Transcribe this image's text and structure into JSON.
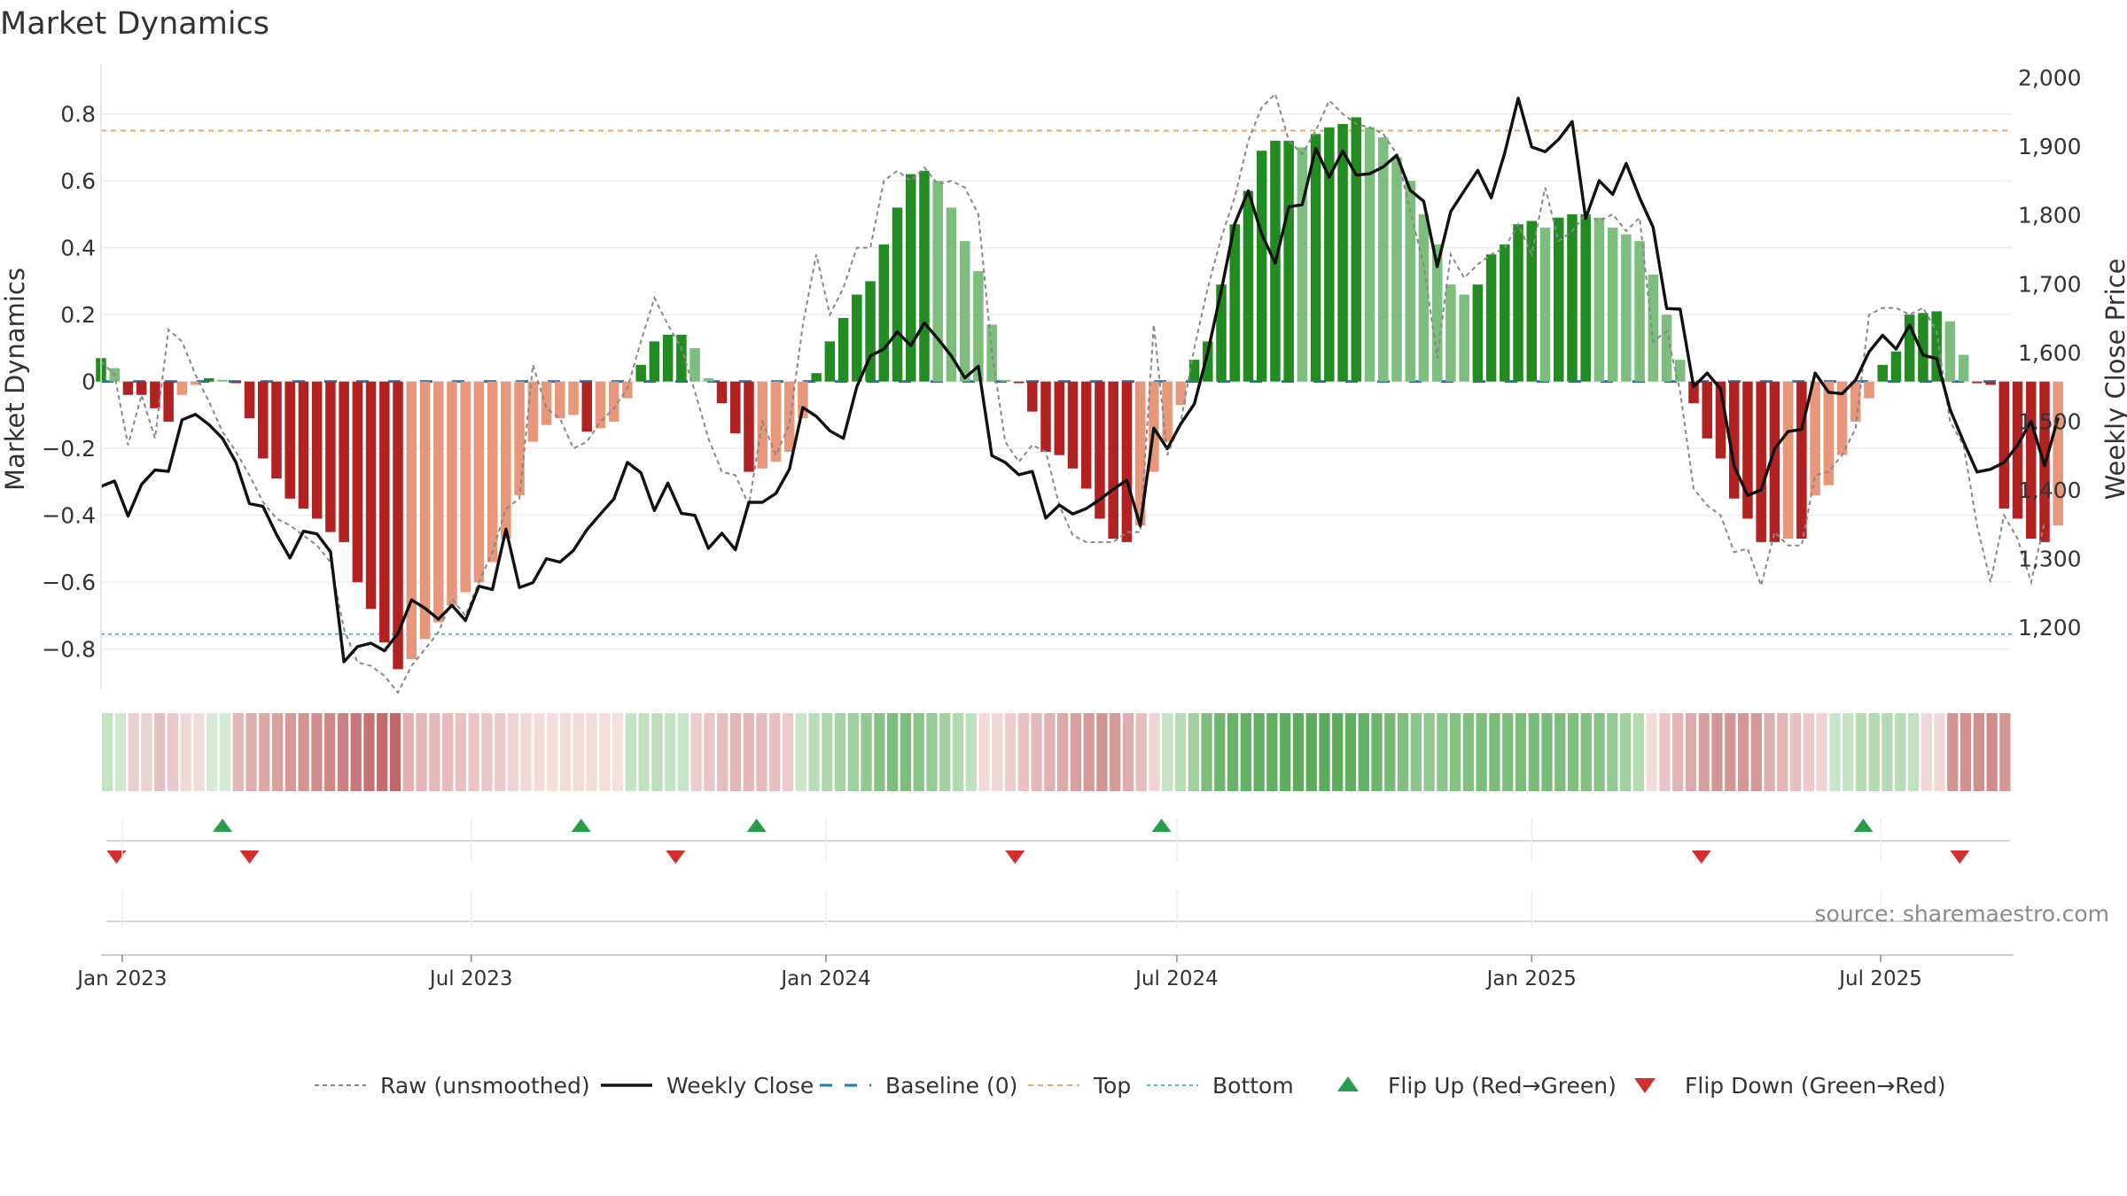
{
  "chart_data": {
    "type": "bar",
    "title": "Market Dynamics",
    "ylabel_left": "Market Dynamics",
    "ylabel_right": "Weekly Close Price",
    "ylim_left": [
      -0.92,
      0.95
    ],
    "ylim_right": [
      1110,
      2020
    ],
    "y_ticks_left": [
      -0.8,
      -0.6,
      -0.4,
      -0.2,
      0,
      0.2,
      0.4,
      0.6,
      0.8
    ],
    "y_tick_labels_left": [
      "−0.8",
      "−0.6",
      "−0.4",
      "−0.2",
      "0",
      "0.2",
      "0.4",
      "0.6",
      "0.8"
    ],
    "y_ticks_right": [
      1200,
      1300,
      1400,
      1500,
      1600,
      1700,
      1800,
      1900,
      2000
    ],
    "y_tick_labels_right": [
      "1,200",
      "1,300",
      "1,400",
      "1,500",
      "1,600",
      "1,700",
      "1,800",
      "1,900",
      "2,000"
    ],
    "x_range": [
      "2022-12-21",
      "2025-09-07"
    ],
    "x_ticks": [
      "2023-01-01",
      "2023-07-01",
      "2024-01-01",
      "2024-07-01",
      "2025-01-01",
      "2025-07-01"
    ],
    "x_tick_labels": [
      "Jan 2023",
      "Jul 2023",
      "Jan 2024",
      "Jul 2024",
      "Jan 2025",
      "Jul 2025"
    ],
    "first_week": "2022-12-21",
    "top_line": 0.75,
    "bottom_line": -0.755,
    "baseline": 0,
    "grid": true,
    "legend_position": "bottom",
    "colors": {
      "strong_green": "#228b22",
      "light_green": "#7dbd7d",
      "strong_red": "#b22222",
      "light_red": "#e8977a",
      "raw": "#888888",
      "close": "#111111",
      "baseline": "#1f77b4",
      "top": "#f4a460",
      "bottom": "#40c4d4",
      "flip_up": "#2a9d4a",
      "flip_down": "#d32f2f"
    },
    "series": [
      {
        "name": "Market Dynamics",
        "values": [
          0.07,
          0.04,
          -0.04,
          -0.04,
          -0.08,
          -0.12,
          -0.04,
          -0.01,
          0.01,
          0.005,
          -0.005,
          -0.11,
          -0.23,
          -0.29,
          -0.35,
          -0.38,
          -0.41,
          -0.45,
          -0.48,
          -0.6,
          -0.68,
          -0.78,
          -0.86,
          -0.83,
          -0.77,
          -0.72,
          -0.67,
          -0.63,
          -0.6,
          -0.54,
          -0.47,
          -0.34,
          -0.18,
          -0.13,
          -0.11,
          -0.1,
          -0.15,
          -0.14,
          -0.12,
          -0.05,
          0.05,
          0.12,
          0.14,
          0.14,
          0.1,
          0.01,
          -0.065,
          -0.155,
          -0.27,
          -0.26,
          -0.24,
          -0.21,
          -0.11,
          0.025,
          0.12,
          0.19,
          0.26,
          0.3,
          0.41,
          0.52,
          0.62,
          0.63,
          0.6,
          0.52,
          0.42,
          0.33,
          0.17,
          0.005,
          -0.005,
          -0.09,
          -0.21,
          -0.22,
          -0.26,
          -0.32,
          -0.41,
          -0.47,
          -0.48,
          -0.43,
          -0.27,
          -0.18,
          -0.07,
          0.065,
          0.12,
          0.29,
          0.47,
          0.57,
          0.69,
          0.72,
          0.72,
          0.7,
          0.74,
          0.76,
          0.77,
          0.79,
          0.76,
          0.73,
          0.67,
          0.6,
          0.5,
          0.41,
          0.29,
          0.26,
          0.29,
          0.38,
          0.41,
          0.47,
          0.48,
          0.46,
          0.49,
          0.5,
          0.5,
          0.49,
          0.46,
          0.44,
          0.42,
          0.32,
          0.2,
          0.065,
          -0.065,
          -0.17,
          -0.23,
          -0.35,
          -0.41,
          -0.48,
          -0.48,
          -0.47,
          -0.47,
          -0.34,
          -0.31,
          -0.22,
          -0.12,
          -0.05,
          0.05,
          0.09,
          0.2,
          0.205,
          0.21,
          0.18,
          0.08,
          -0.005,
          -0.01,
          -0.38,
          -0.41,
          -0.47,
          -0.48,
          -0.43
        ]
      },
      {
        "name": "Raw (unsmoothed)",
        "values": [
          0.06,
          0.02,
          -0.19,
          -0.04,
          -0.17,
          0.155,
          0.12,
          0.02,
          -0.06,
          -0.15,
          -0.21,
          -0.28,
          -0.36,
          -0.41,
          -0.43,
          -0.46,
          -0.49,
          -0.54,
          -0.74,
          -0.84,
          -0.85,
          -0.88,
          -0.93,
          -0.85,
          -0.8,
          -0.75,
          -0.65,
          -0.7,
          -0.6,
          -0.51,
          -0.38,
          -0.35,
          0.05,
          -0.08,
          -0.11,
          -0.2,
          -0.18,
          -0.12,
          -0.08,
          -0.02,
          0.12,
          0.25,
          0.17,
          0.1,
          -0.03,
          -0.17,
          -0.27,
          -0.28,
          -0.37,
          -0.12,
          -0.22,
          -0.13,
          0.17,
          0.38,
          0.2,
          0.28,
          0.4,
          0.4,
          0.6,
          0.63,
          0.6,
          0.64,
          0.59,
          0.6,
          0.58,
          0.5,
          0.09,
          -0.18,
          -0.24,
          -0.19,
          -0.21,
          -0.37,
          -0.46,
          -0.48,
          -0.48,
          -0.48,
          -0.45,
          -0.45,
          0.17,
          -0.22,
          -0.12,
          0.1,
          0.28,
          0.43,
          0.55,
          0.72,
          0.82,
          0.86,
          0.72,
          0.68,
          0.75,
          0.84,
          0.8,
          0.77,
          0.76,
          0.74,
          0.68,
          0.51,
          0.35,
          0.07,
          0.38,
          0.31,
          0.35,
          0.38,
          0.4,
          0.47,
          0.38,
          0.58,
          0.42,
          0.45,
          0.5,
          0.48,
          0.5,
          0.45,
          0.49,
          0.12,
          0.15,
          -0.03,
          -0.32,
          -0.37,
          -0.4,
          -0.51,
          -0.5,
          -0.61,
          -0.45,
          -0.49,
          -0.49,
          -0.28,
          -0.27,
          -0.22,
          -0.14,
          0.2,
          0.22,
          0.22,
          0.2,
          0.22,
          0.15,
          -0.12,
          -0.19,
          -0.43,
          -0.6,
          -0.4,
          -0.47,
          -0.6,
          -0.42
        ]
      },
      {
        "name": "Weekly Close",
        "values": [
          1405,
          1413,
          1362,
          1408,
          1429,
          1427,
          1502,
          1510,
          1495,
          1475,
          1440,
          1380,
          1376,
          1335,
          1301,
          1340,
          1336,
          1310,
          1150,
          1172,
          1177,
          1166,
          1191,
          1240,
          1228,
          1212,
          1232,
          1210,
          1260,
          1255,
          1343,
          1258,
          1265,
          1300,
          1295,
          1312,
          1342,
          1365,
          1387,
          1440,
          1425,
          1370,
          1410,
          1366,
          1363,
          1315,
          1337,
          1313,
          1382,
          1382,
          1395,
          1430,
          1520,
          1507,
          1486,
          1475,
          1550,
          1595,
          1605,
          1630,
          1610,
          1643,
          1620,
          1595,
          1563,
          1580,
          1450,
          1440,
          1422,
          1427,
          1359,
          1378,
          1365,
          1373,
          1386,
          1401,
          1414,
          1348,
          1490,
          1460,
          1496,
          1525,
          1600,
          1690,
          1787,
          1835,
          1772,
          1730,
          1812,
          1815,
          1897,
          1855,
          1893,
          1858,
          1860,
          1870,
          1887,
          1836,
          1820,
          1725,
          1805,
          1835,
          1865,
          1825,
          1890,
          1970,
          1899,
          1892,
          1910,
          1936,
          1795,
          1850,
          1830,
          1875,
          1825,
          1782,
          1664,
          1663,
          1550,
          1570,
          1547,
          1435,
          1392,
          1400,
          1460,
          1485,
          1488,
          1570,
          1542,
          1540,
          1560,
          1601,
          1625,
          1605,
          1640,
          1596,
          1591,
          1517,
          1470,
          1426,
          1430,
          1440,
          1465,
          1500,
          1435,
          1505
        ]
      }
    ],
    "regime_colors": [
      "#c3e2c3",
      "#cfe7cf",
      "#eacfcf",
      "#ebd1d1",
      "#e6c1c1",
      "#e9c9c9",
      "#efd9d9",
      "#f1dcdc",
      "#d6ead6",
      "#d3e9d3",
      "#e2b7b7",
      "#dfadad",
      "#dca6a6",
      "#d9a0a0",
      "#d79a9a",
      "#d49494",
      "#d28e8e",
      "#d08888",
      "#cc8080",
      "#c97777",
      "#c77272",
      "#c46c6c",
      "#c26767",
      "#e2b0b0",
      "#e5b5b5",
      "#e6b9b9",
      "#e7bbbb",
      "#e9bfbf",
      "#eac3c3",
      "#ebc6c6",
      "#eccaca",
      "#efd3d3",
      "#f1d8d8",
      "#f3dcdc",
      "#f3dddd",
      "#f2dbdb",
      "#f2dada",
      "#f2dbdb",
      "#f3dcdc",
      "#f5e0e0",
      "#c4e2c4",
      "#c0e0c0",
      "#bcdebc",
      "#c4e2c4",
      "#c8e4c8",
      "#eccccc",
      "#e9c5c5",
      "#e6bdbd",
      "#e3b5b5",
      "#e4b7b7",
      "#e6bbbb",
      "#e8c0c0",
      "#eccaca",
      "#c8e5c8",
      "#b9ddb9",
      "#add8ad",
      "#a6d4a6",
      "#9fd09f",
      "#93ca93",
      "#85c385",
      "#7cbe7c",
      "#7cbe7c",
      "#88c488",
      "#95cb95",
      "#a2d1a2",
      "#b0d9b0",
      "#bfe0bf",
      "#f1dada",
      "#f0d6d6",
      "#eccccc",
      "#e8c2c2",
      "#e4b9b9",
      "#e1b2b2",
      "#ddaaaa",
      "#da9f9f",
      "#d69898",
      "#d49393",
      "#d69999",
      "#dfadad",
      "#e6bcbc",
      "#efd4d4",
      "#c5e3c5",
      "#b8dcb8",
      "#a0d0a0",
      "#7dbe7d",
      "#6db56d",
      "#68b368",
      "#64b164",
      "#62b062",
      "#61af61",
      "#5fae5f",
      "#5dad5d",
      "#5cac5c",
      "#5bab5b",
      "#5dad5d",
      "#60ae60",
      "#66b266",
      "#6cb56c",
      "#76ba76",
      "#80bf80",
      "#8cc68c",
      "#90c890",
      "#8cc68c",
      "#84c284",
      "#80c080",
      "#7cbe7c",
      "#7abd7a",
      "#7dbe7d",
      "#7abd7a",
      "#79bc79",
      "#79bc79",
      "#7bbd7b",
      "#7fbf7f",
      "#83c183",
      "#87c387",
      "#93ca93",
      "#a1d1a1",
      "#b3dab3",
      "#f1dcdc",
      "#e9c4c4",
      "#e3b4b4",
      "#dcabab",
      "#d7a0a0",
      "#d39696",
      "#d39696",
      "#d49696",
      "#d59898",
      "#e0b0b0",
      "#e3b5b5",
      "#e8c0c0",
      "#eccaca",
      "#efd3d3",
      "#c9e5c9",
      "#c4e2c4",
      "#b5dbb5",
      "#b4dab4",
      "#b3dab3",
      "#b7dcb7",
      "#c2e1c2",
      "#f0d8d8",
      "#f0d8d8",
      "#d49494",
      "#d39191",
      "#d18e8e",
      "#d08c8c",
      "#d49797"
    ],
    "flips_up": [
      "2023-02-22",
      "2023-08-27",
      "2023-11-26",
      "2024-06-23",
      "2025-06-22"
    ],
    "flips_down": [
      "2022-12-29",
      "2023-03-08",
      "2023-10-15",
      "2024-04-08",
      "2025-03-30",
      "2025-08-11"
    ],
    "legend": [
      {
        "label": "Raw (unsmoothed)",
        "style": "dotted-gray"
      },
      {
        "label": "Weekly Close",
        "style": "solid-black"
      },
      {
        "label": "Baseline (0)",
        "style": "dashed-blue"
      },
      {
        "label": "Top",
        "style": "dashed-orange"
      },
      {
        "label": "Bottom",
        "style": "dashed-cyan"
      },
      {
        "label": "Flip Up (Red→Green)",
        "style": "triangle-up-green"
      },
      {
        "label": "Flip Down (Green→Red)",
        "style": "triangle-down-red"
      }
    ],
    "source": "source: sharemaestro.com"
  }
}
